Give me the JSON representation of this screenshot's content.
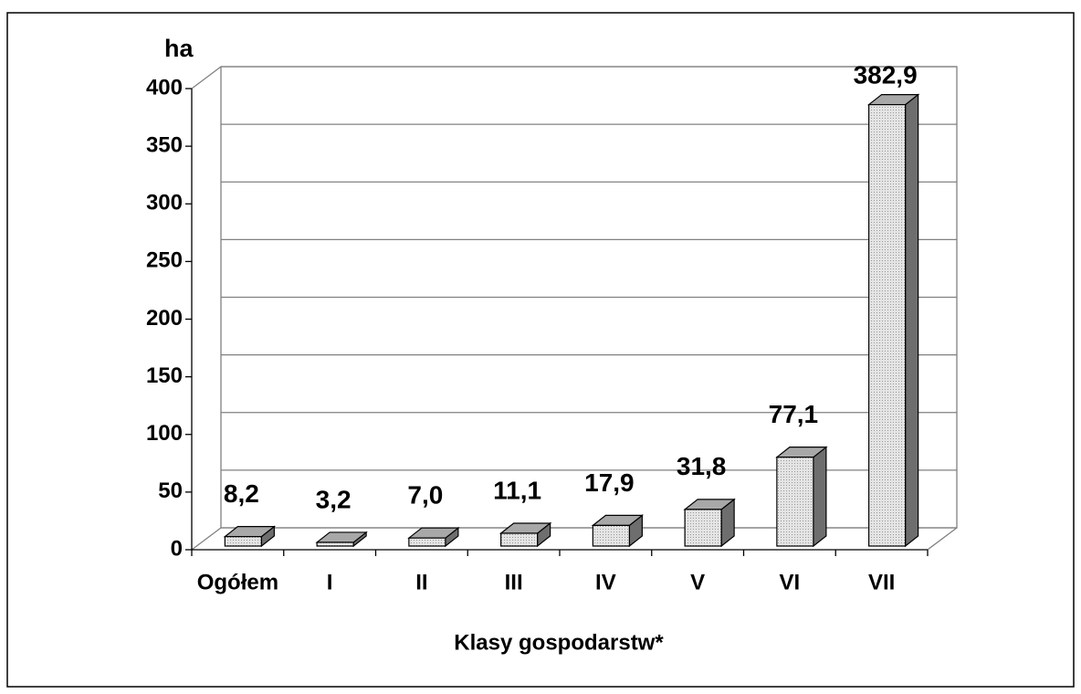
{
  "chart_data": {
    "type": "bar3d",
    "y_label": "ha",
    "x_label": "Klasy gospodarstw*",
    "categories": [
      "Ogółem",
      "I",
      "II",
      "III",
      "IV",
      "V",
      "VI",
      "VII"
    ],
    "values": [
      8.2,
      3.2,
      7.0,
      11.1,
      17.9,
      31.8,
      77.1,
      382.9
    ],
    "value_labels": [
      "8,2",
      "3,2",
      "7,0",
      "11,1",
      "17,9",
      "31,8",
      "77,1",
      "382,9"
    ],
    "ylim": [
      0,
      400
    ],
    "yticks": [
      0,
      50,
      100,
      150,
      200,
      250,
      300,
      350,
      400
    ],
    "grid": true,
    "color": "#d4d4d4"
  }
}
